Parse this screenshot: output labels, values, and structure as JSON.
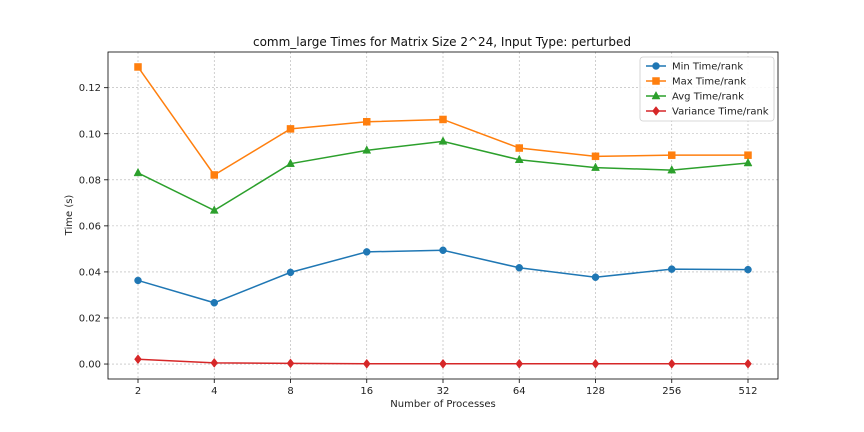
{
  "chart_data": {
    "type": "line",
    "title": "comm_large Times for Matrix Size 2^24, Input Type: perturbed",
    "xlabel": "Number of Processes",
    "ylabel": "Time (s)",
    "categories": [
      "2",
      "4",
      "8",
      "16",
      "32",
      "64",
      "128",
      "256",
      "512"
    ],
    "ylim": [
      -0.0065,
      0.1355
    ],
    "yticks": [
      0.0,
      0.02,
      0.04,
      0.06,
      0.08,
      0.1,
      0.12
    ],
    "ytick_labels": [
      "0.00",
      "0.02",
      "0.04",
      "0.06",
      "0.08",
      "0.10",
      "0.12"
    ],
    "grid": true,
    "legend_position": "top-right",
    "series": [
      {
        "name": "Min Time/rank",
        "color": "#1f77b4",
        "marker": "circle",
        "values": [
          0.0363,
          0.0266,
          0.0398,
          0.0487,
          0.0494,
          0.0418,
          0.0377,
          0.0412,
          0.041
        ]
      },
      {
        "name": "Max Time/rank",
        "color": "#ff7f0e",
        "marker": "square",
        "values": [
          0.129,
          0.0821,
          0.1021,
          0.1052,
          0.1062,
          0.0938,
          0.0902,
          0.0907,
          0.0907
        ]
      },
      {
        "name": "Avg Time/rank",
        "color": "#2ca02c",
        "marker": "triangle",
        "values": [
          0.083,
          0.0667,
          0.087,
          0.0928,
          0.0967,
          0.0887,
          0.0853,
          0.0842,
          0.0873
        ]
      },
      {
        "name": "Variance Time/rank",
        "color": "#d62728",
        "marker": "diamond",
        "values": [
          0.0021,
          0.0005,
          0.0003,
          0.0001,
          0.0001,
          0.0001,
          0.0001,
          0.0001,
          0.0001
        ]
      }
    ]
  }
}
